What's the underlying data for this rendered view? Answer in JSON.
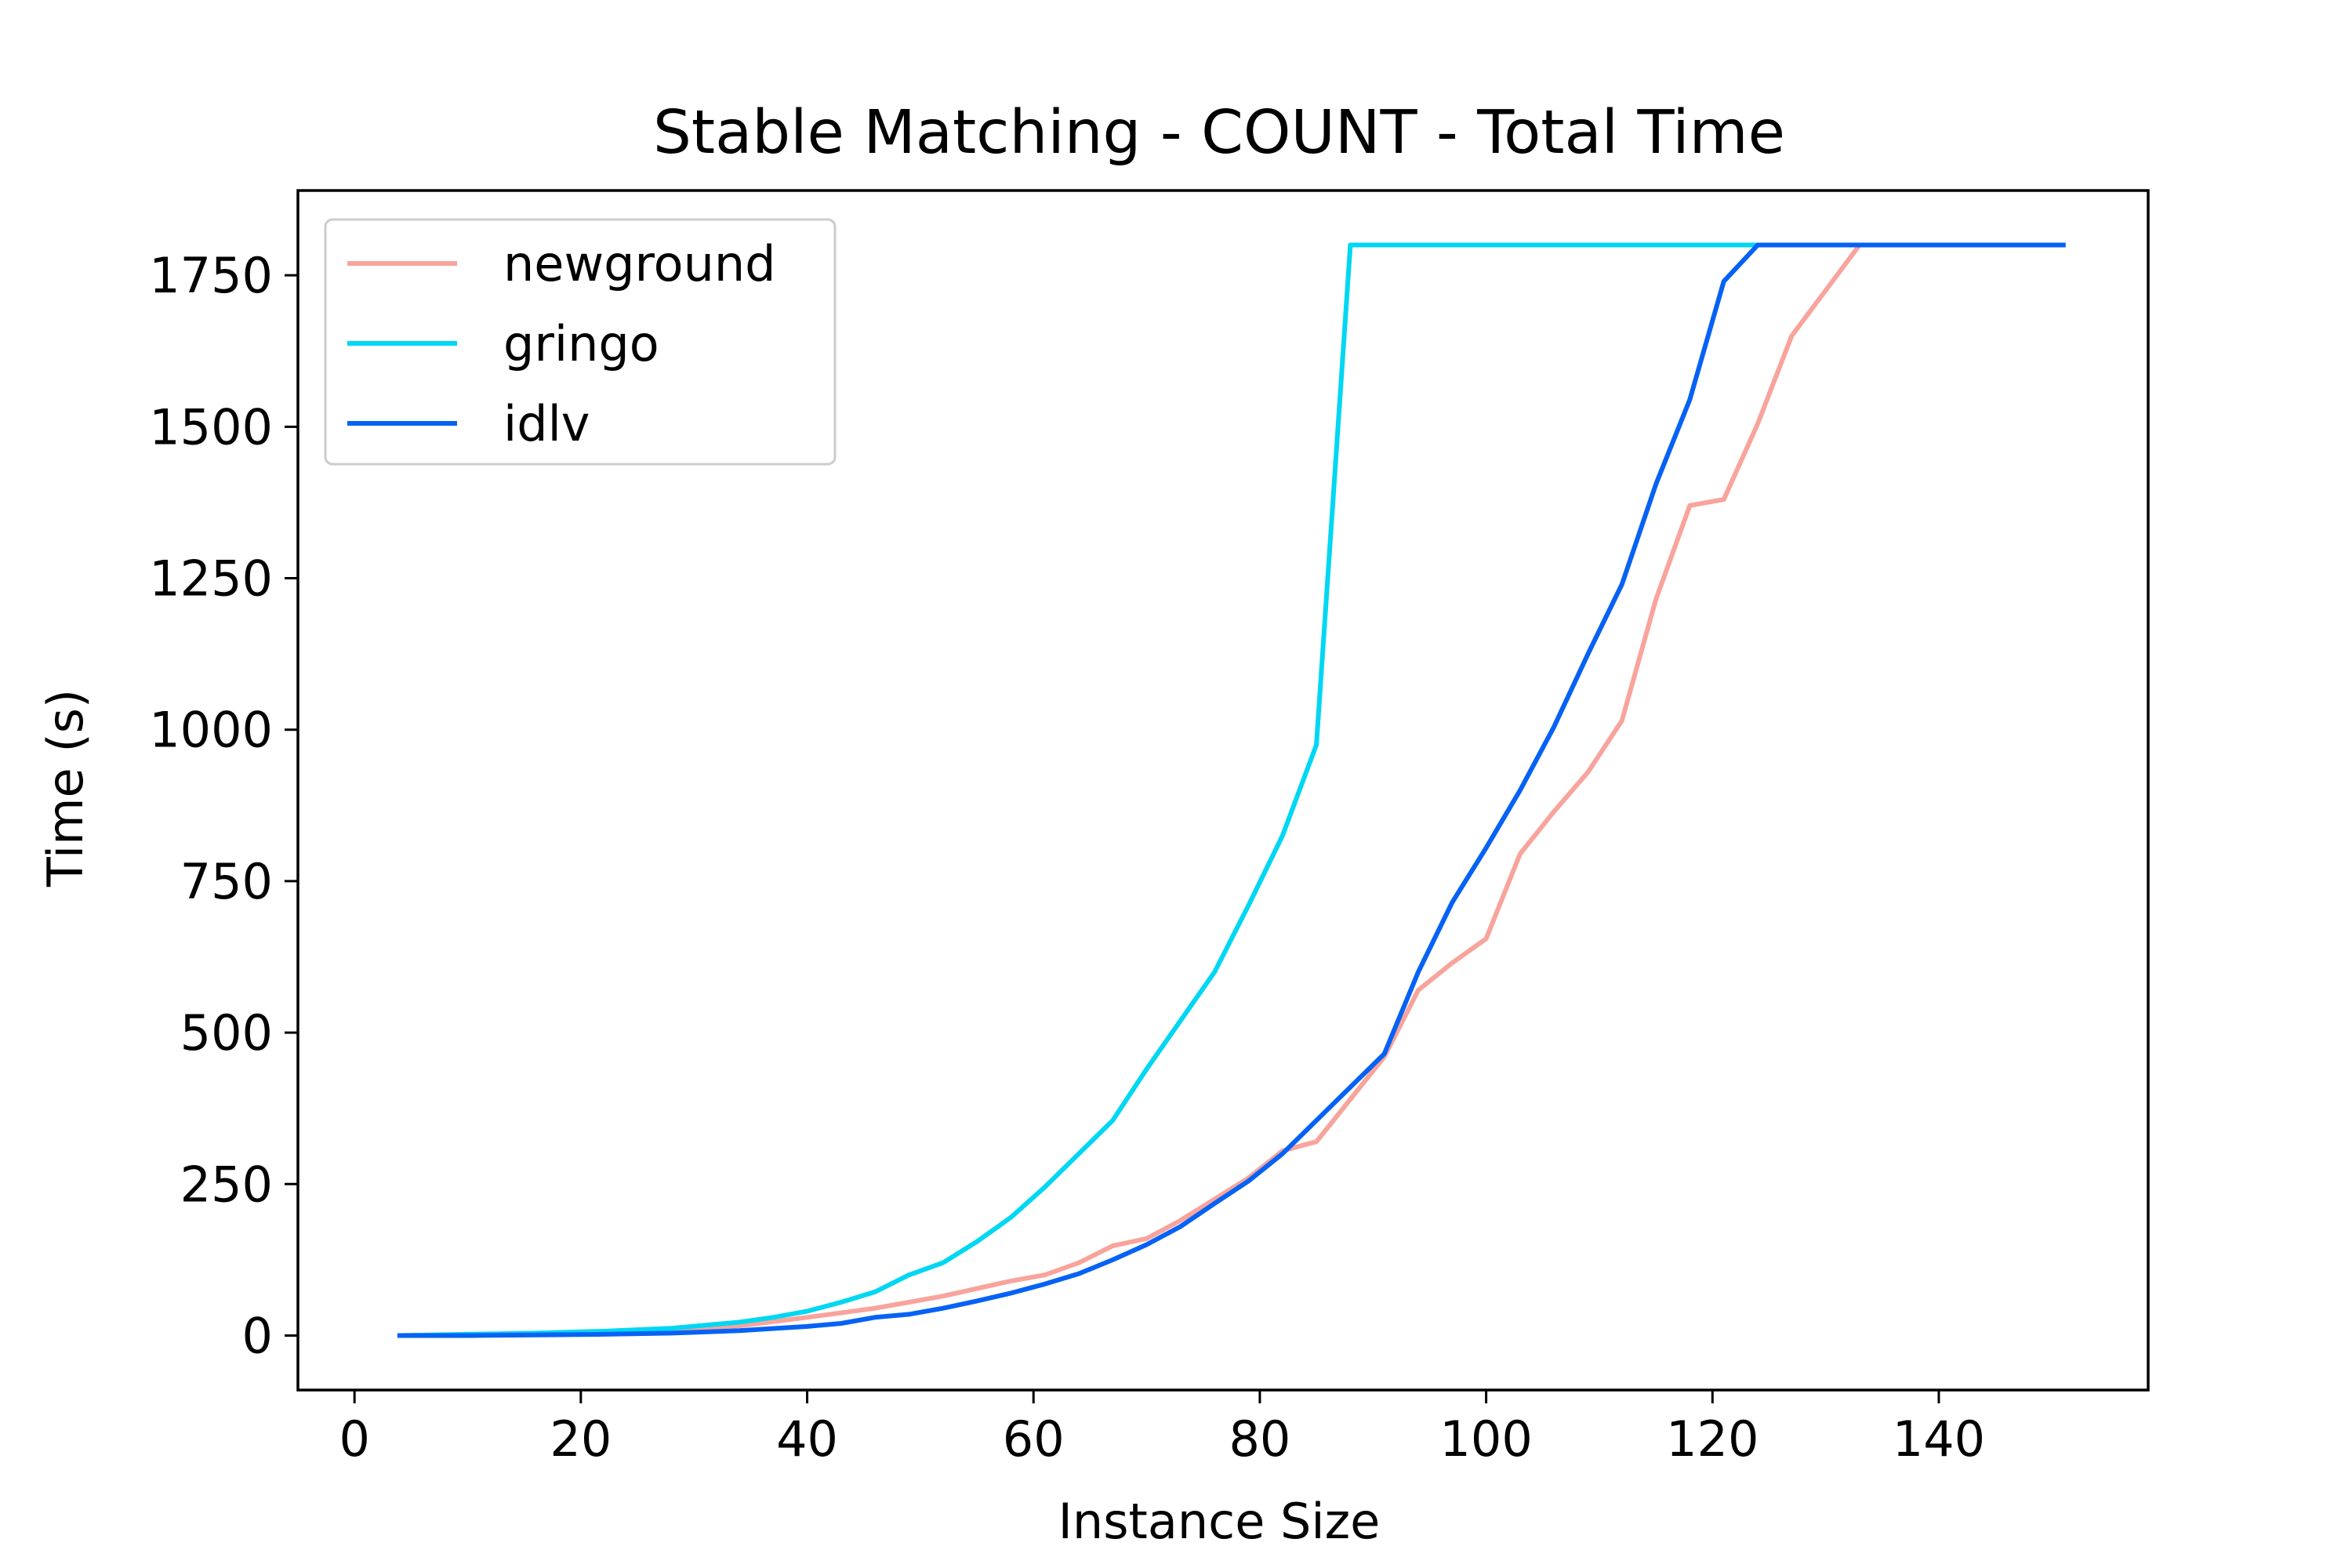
{
  "chart_data": {
    "type": "line",
    "title": "Stable Matching - COUNT - Total Time",
    "xlabel": "Instance Size",
    "ylabel": "Time (s)",
    "xlim": [
      -5,
      158.5
    ],
    "ylim": [
      -90,
      1890
    ],
    "xticks": [
      0,
      20,
      40,
      60,
      80,
      100,
      120,
      140
    ],
    "yticks": [
      0,
      250,
      500,
      750,
      1000,
      1250,
      1500,
      1750
    ],
    "grid": false,
    "legend_position": "top-left",
    "series": [
      {
        "name": "newground",
        "color": "#f8a49c",
        "x": [
          4,
          10,
          16,
          22,
          28,
          34,
          40,
          46,
          52,
          58,
          61,
          64,
          67,
          70,
          73,
          76,
          79,
          82,
          85,
          88,
          91,
          94,
          97,
          100,
          103,
          106,
          109,
          112,
          115,
          118,
          121,
          124,
          127,
          130,
          133,
          136,
          139,
          142,
          145,
          148,
          151
        ],
        "y": [
          0,
          1,
          2,
          5,
          10,
          16,
          30,
          45,
          65,
          90,
          100,
          120,
          148,
          160,
          190,
          225,
          260,
          305,
          320,
          390,
          460,
          570,
          615,
          655,
          795,
          865,
          930,
          1015,
          1215,
          1370,
          1380,
          1505,
          1650,
          1725,
          1800,
          1800,
          1800,
          1800,
          1800,
          1800,
          1800
        ]
      },
      {
        "name": "gringo",
        "color": "#00d7f2",
        "x": [
          4,
          10,
          16,
          22,
          28,
          34,
          37,
          40,
          43,
          46,
          49,
          52,
          55,
          58,
          61,
          64,
          67,
          70,
          73,
          76,
          79,
          82,
          85,
          88,
          91,
          94,
          97,
          100,
          103,
          106,
          109,
          112,
          115,
          118,
          121,
          124,
          127,
          130,
          133,
          136,
          139,
          142,
          145,
          148,
          151
        ],
        "y": [
          0,
          2,
          4,
          7,
          12,
          22,
          30,
          40,
          55,
          72,
          100,
          120,
          155,
          195,
          245,
          300,
          355,
          440,
          520,
          600,
          710,
          825,
          975,
          1800,
          1800,
          1800,
          1800,
          1800,
          1800,
          1800,
          1800,
          1800,
          1800,
          1800,
          1800,
          1800,
          1800,
          1800,
          1800,
          1800,
          1800,
          1800,
          1800,
          1800,
          1800
        ]
      },
      {
        "name": "idlv",
        "color": "#0662f5",
        "x": [
          4,
          10,
          16,
          22,
          28,
          34,
          40,
          43,
          46,
          49,
          52,
          55,
          58,
          61,
          64,
          67,
          70,
          73,
          76,
          79,
          82,
          85,
          88,
          91,
          94,
          97,
          100,
          103,
          106,
          109,
          112,
          115,
          118,
          121,
          124,
          127,
          130,
          133,
          136,
          139,
          142,
          145,
          148,
          151
        ],
        "y": [
          0,
          0,
          1,
          2,
          4,
          8,
          15,
          20,
          30,
          35,
          45,
          57,
          70,
          85,
          102,
          125,
          150,
          180,
          218,
          255,
          300,
          355,
          410,
          465,
          600,
          715,
          805,
          900,
          1005,
          1125,
          1240,
          1405,
          1545,
          1740,
          1800,
          1800,
          1800,
          1800,
          1800,
          1800,
          1800,
          1800,
          1800,
          1800
        ]
      }
    ]
  }
}
